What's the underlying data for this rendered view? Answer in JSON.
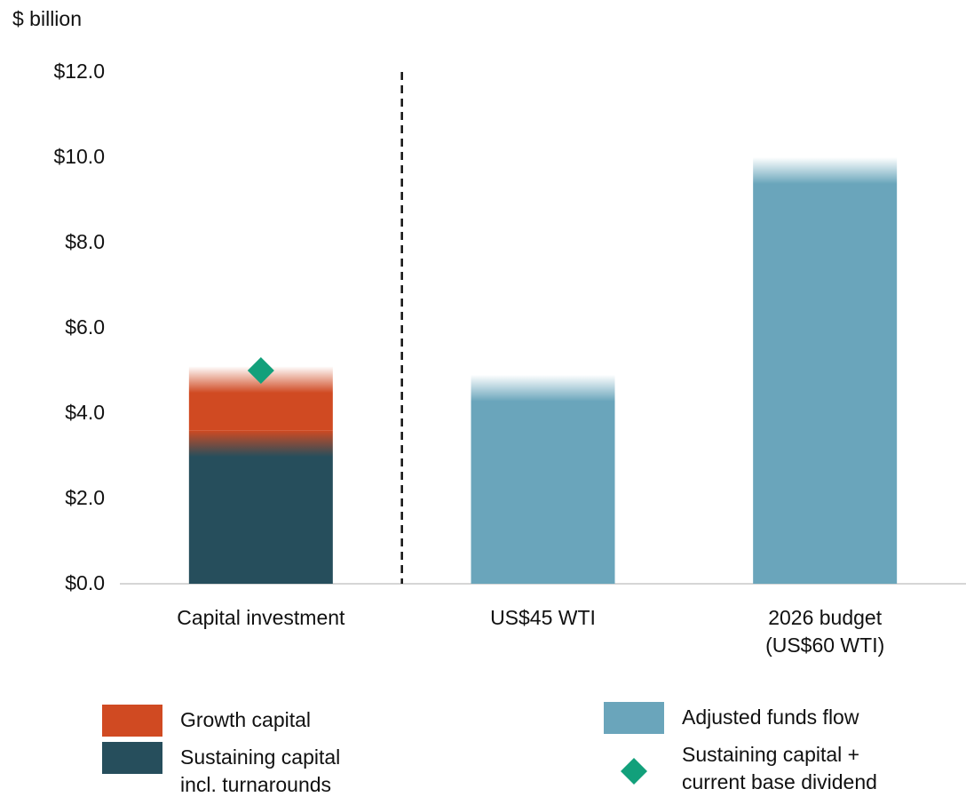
{
  "chart_data": {
    "type": "bar",
    "stacked": true,
    "y_axis_label": "$ billion",
    "categories": [
      "Capital investment",
      "US$45 WTI",
      "2026 budget\n(US$60 WTI)"
    ],
    "series": [
      {
        "name": "Growth capital",
        "color": "#d04a22",
        "values": [
          1.5,
          null,
          null
        ]
      },
      {
        "name": "Sustaining capital\nincl. turnarounds",
        "color": "#264e5c",
        "values": [
          3.6,
          null,
          null
        ]
      },
      {
        "name": "Adjusted funds flow",
        "color": "#6aa5bb",
        "values": [
          null,
          4.9,
          10.0
        ]
      },
      {
        "name": "Sustaining capital +\ncurrent base dividend",
        "color": "#12a07b",
        "marker": "diamond",
        "values": [
          5.0,
          null,
          null
        ]
      }
    ],
    "ylim": [
      0,
      12
    ],
    "yticks": [
      {
        "value": 0,
        "label": "$0.0"
      },
      {
        "value": 2,
        "label": "$2.0"
      },
      {
        "value": 4,
        "label": "$4.0"
      },
      {
        "value": 6,
        "label": "$6.0"
      },
      {
        "value": 8,
        "label": "$8.0"
      },
      {
        "value": 10,
        "label": "$10.0"
      },
      {
        "value": 12,
        "label": "$12.0"
      }
    ]
  }
}
